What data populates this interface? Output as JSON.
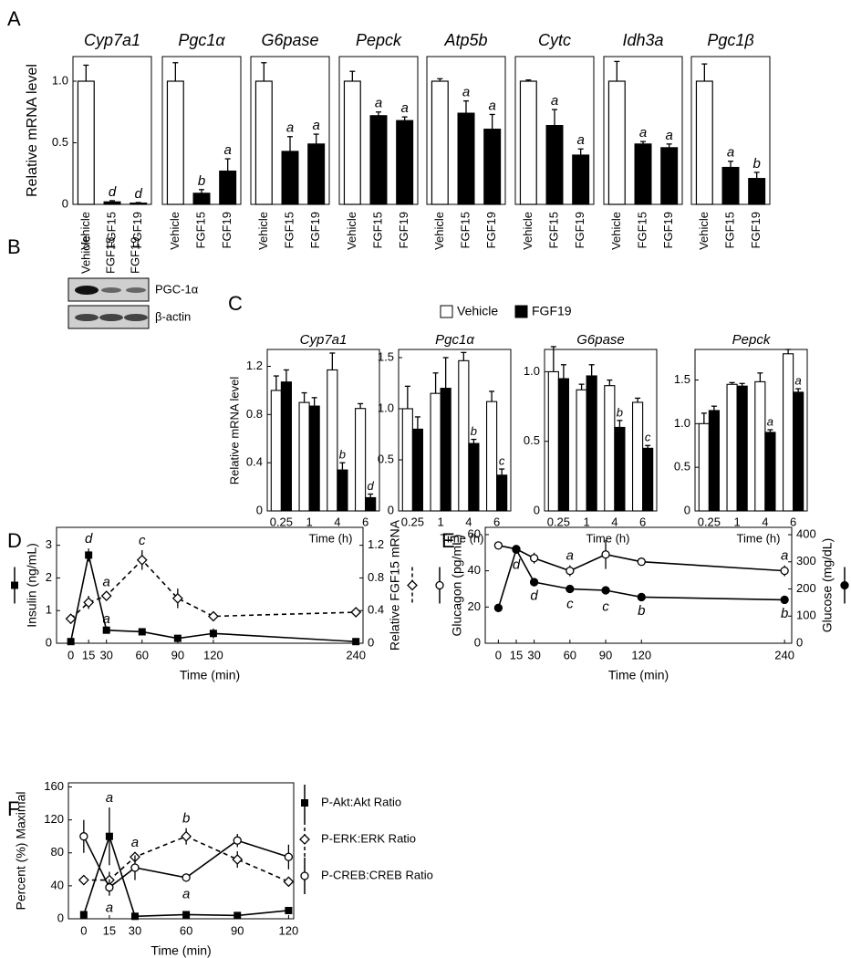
{
  "panel_labels": [
    "A",
    "B",
    "C",
    "D",
    "E",
    "F"
  ],
  "blot": {
    "lanes": [
      "Vehicle",
      "FGF15",
      "FGF19"
    ],
    "bands": [
      "PGC-1α",
      "β-actin"
    ]
  },
  "chart_data": [
    {
      "type": "bar_panels",
      "ylabel": "Relative mRNA level",
      "categories": [
        "Vehicle",
        "FGF15",
        "FGF19"
      ],
      "colors": [
        "#ffffff",
        "#000000",
        "#000000"
      ],
      "ylim": [
        0,
        1.2
      ],
      "yticks": [
        0,
        0.5,
        {
          "value": 1,
          "label": "1.0"
        }
      ],
      "panels": [
        {
          "title": "Cyp7a1",
          "values": [
            1.0,
            0.02,
            0.01
          ],
          "errors": [
            0.13,
            0.01,
            0.005
          ],
          "annotations": [
            null,
            "d",
            "d"
          ]
        },
        {
          "title": "Pgc1α",
          "values": [
            1.0,
            0.09,
            0.27
          ],
          "errors": [
            0.15,
            0.03,
            0.1
          ],
          "annotations": [
            null,
            "b",
            "a"
          ]
        },
        {
          "title": "G6pase",
          "values": [
            1.0,
            0.43,
            0.49
          ],
          "errors": [
            0.15,
            0.12,
            0.08
          ],
          "annotations": [
            null,
            "a",
            "a"
          ]
        },
        {
          "title": "Pepck",
          "values": [
            1.0,
            0.72,
            0.68
          ],
          "errors": [
            0.08,
            0.03,
            0.03
          ],
          "annotations": [
            null,
            "a",
            "a"
          ]
        },
        {
          "title": "Atp5b",
          "values": [
            1.0,
            0.74,
            0.61
          ],
          "errors": [
            0.02,
            0.1,
            0.12
          ],
          "annotations": [
            null,
            "a",
            "a"
          ]
        },
        {
          "title": "Cytc",
          "values": [
            1.0,
            0.64,
            0.4
          ],
          "errors": [
            0.01,
            0.13,
            0.05
          ],
          "annotations": [
            null,
            "a",
            "a"
          ]
        },
        {
          "title": "Idh3a",
          "values": [
            1.0,
            0.49,
            0.46
          ],
          "errors": [
            0.16,
            0.02,
            0.03
          ],
          "annotations": [
            null,
            "a",
            "a"
          ]
        },
        {
          "title": "Pgc1β",
          "values": [
            1.0,
            0.3,
            0.21
          ],
          "errors": [
            0.14,
            0.05,
            0.05
          ],
          "annotations": [
            null,
            "a",
            "b"
          ]
        }
      ]
    },
    {
      "type": "grouped_bar_panels",
      "ylabel": "Relative mRNA level",
      "xlabel": "Time (h)",
      "categories": [
        "0.25",
        "1",
        "4",
        "6"
      ],
      "series": [
        {
          "name": "Vehicle",
          "color": "#ffffff"
        },
        {
          "name": "FGF19",
          "color": "#000000"
        }
      ],
      "panels": [
        {
          "title": "Cyp7a1",
          "ylim": [
            0,
            1.34
          ],
          "yticks": [
            0,
            0.4,
            0.8,
            1.2
          ],
          "values": [
            [
              1.0,
              0.9,
              1.17,
              0.85
            ],
            [
              1.07,
              0.87,
              0.34,
              0.11
            ]
          ],
          "errors": [
            [
              0.12,
              0.08,
              0.14,
              0.04
            ],
            [
              0.1,
              0.07,
              0.06,
              0.03
            ]
          ],
          "annotations": [
            [
              null,
              null,
              null,
              null
            ],
            [
              null,
              null,
              "b",
              "d"
            ]
          ]
        },
        {
          "title": "Pgc1α",
          "ylim": [
            0,
            1.58
          ],
          "yticks": [
            0,
            0.5,
            {
              "value": 1,
              "label": "1.0"
            },
            1.5
          ],
          "values": [
            [
              1.0,
              1.15,
              1.47,
              1.07
            ],
            [
              0.8,
              1.2,
              0.66,
              0.35
            ]
          ],
          "errors": [
            [
              0.22,
              0.2,
              0.08,
              0.1
            ],
            [
              0.12,
              0.3,
              0.04,
              0.06
            ]
          ],
          "annotations": [
            [
              null,
              null,
              null,
              null
            ],
            [
              null,
              null,
              "b",
              "c"
            ]
          ]
        },
        {
          "title": "G6pase",
          "ylim": [
            0,
            1.16
          ],
          "yticks": [
            0,
            0.5,
            {
              "value": 1,
              "label": "1.0"
            }
          ],
          "values": [
            [
              1.0,
              0.87,
              0.9,
              0.78
            ],
            [
              0.95,
              0.97,
              0.6,
              0.45
            ]
          ],
          "errors": [
            [
              0.18,
              0.04,
              0.04,
              0.03
            ],
            [
              0.1,
              0.08,
              0.05,
              0.02
            ]
          ],
          "annotations": [
            [
              null,
              null,
              null,
              null
            ],
            [
              null,
              null,
              "b",
              "c"
            ]
          ]
        },
        {
          "title": "Pepck",
          "ylim": [
            0,
            1.85
          ],
          "yticks": [
            0,
            0.5,
            {
              "value": 1,
              "label": "1.0"
            },
            1.5
          ],
          "values": [
            [
              1.0,
              1.45,
              1.48,
              1.8
            ],
            [
              1.15,
              1.43,
              0.9,
              1.36
            ]
          ],
          "errors": [
            [
              0.12,
              0.02,
              0.1,
              0.05
            ],
            [
              0.05,
              0.03,
              0.03,
              0.04
            ]
          ],
          "annotations": [
            [
              null,
              null,
              null,
              null
            ],
            [
              null,
              null,
              "a",
              "a"
            ]
          ]
        }
      ]
    },
    {
      "type": "line",
      "xlabel": "Time (min)",
      "ylabel": "Insulin (ng/mL)",
      "y2label": "Relative FGF15 mRNA",
      "x": [
        0,
        15,
        30,
        60,
        90,
        120,
        240
      ],
      "xlim": [
        -12,
        246
      ],
      "xticks": [
        0,
        15,
        30,
        60,
        90,
        120,
        240
      ],
      "ylim": [
        0,
        3.55
      ],
      "yticks": [
        0,
        1,
        2,
        3
      ],
      "y2lim": [
        0,
        1.42
      ],
      "y2ticks": [
        0,
        0.4,
        0.8,
        1.2
      ],
      "series": [
        {
          "axis": "y",
          "marker": "square",
          "dashed": false,
          "color": "#000000",
          "annotation_position": "above",
          "values": [
            0.05,
            2.7,
            0.4,
            0.35,
            0.15,
            0.3,
            0.05
          ],
          "errors": [
            0,
            0.2,
            0.05,
            0.1,
            0.05,
            0.15,
            0
          ],
          "annotations": [
            null,
            "d",
            "a",
            null,
            null,
            null,
            null
          ]
        },
        {
          "axis": "y2",
          "marker": "diamond",
          "dashed": true,
          "color": "#000000",
          "annotation_position": "above",
          "values": [
            0.3,
            0.5,
            0.58,
            1.02,
            0.55,
            0.33,
            0.38
          ],
          "errors": [
            0.03,
            0.08,
            0.05,
            0.12,
            0.12,
            0.02,
            0.05
          ],
          "annotations": [
            null,
            null,
            "a",
            "c",
            null,
            null,
            null
          ]
        }
      ]
    },
    {
      "type": "line",
      "xlabel": "Time (min)",
      "ylabel": "Glucagon (pg/mL)",
      "y2label": "Glucose (mg/dL)",
      "x": [
        0,
        15,
        30,
        60,
        90,
        120,
        240
      ],
      "xlim": [
        -11,
        246
      ],
      "xticks": [
        0,
        15,
        30,
        60,
        90,
        120,
        240
      ],
      "ylim": [
        0,
        64
      ],
      "yticks": [
        0,
        20,
        40,
        60
      ],
      "y2lim": [
        0,
        427
      ],
      "y2ticks": [
        0,
        100,
        200,
        300,
        400
      ],
      "series": [
        {
          "axis": "y",
          "marker": "open-circle",
          "dashed": false,
          "color": "#000000",
          "annotation_position": "above",
          "values": [
            54,
            52,
            47,
            40,
            49,
            45,
            40
          ],
          "errors": [
            2,
            2,
            3,
            3,
            8,
            2,
            3
          ],
          "annotations": [
            null,
            null,
            null,
            "a",
            null,
            null,
            "a"
          ]
        },
        {
          "axis": "y2",
          "marker": "filled-circle",
          "dashed": false,
          "color": "#000000",
          "annotation_position": "below",
          "values": [
            130,
            345,
            225,
            200,
            195,
            170,
            160
          ],
          "errors": [
            5,
            10,
            5,
            10,
            15,
            5,
            5
          ],
          "annotations": [
            null,
            "d",
            "d",
            "c",
            "c",
            "b",
            "b"
          ]
        }
      ]
    },
    {
      "type": "line",
      "xlabel": "Time (min)",
      "ylabel": "Percent (%) Maximal",
      "x": [
        0,
        15,
        30,
        60,
        90,
        120
      ],
      "xlim": [
        -9,
        123
      ],
      "xticks": [
        0,
        15,
        30,
        60,
        90,
        120
      ],
      "ylim": [
        0,
        165
      ],
      "yticks": [
        0,
        40,
        80,
        120,
        160
      ],
      "series": [
        {
          "name": "P-Akt:Akt Ratio",
          "axis": "y",
          "marker": "square",
          "dashed": false,
          "color": "#000000",
          "annotation_position": "above",
          "values": [
            5,
            100,
            3,
            5,
            4,
            10
          ],
          "errors": [
            0,
            35,
            0,
            2,
            2,
            2
          ],
          "annotations": [
            null,
            "a",
            null,
            null,
            null,
            null
          ]
        },
        {
          "name": "P-ERK:ERK Ratio",
          "axis": "y",
          "marker": "diamond",
          "dashed": true,
          "color": "#000000",
          "annotation_position": "above",
          "values": [
            47,
            47,
            75,
            100,
            72,
            45
          ],
          "errors": [
            6,
            10,
            6,
            10,
            10,
            3
          ],
          "annotations": [
            null,
            null,
            "a",
            "b",
            null,
            null
          ]
        },
        {
          "name": "P-CREB:CREB Ratio",
          "axis": "y",
          "marker": "open-circle",
          "dashed": false,
          "color": "#000000",
          "annotation_position": "below",
          "values": [
            100,
            38,
            62,
            50,
            95,
            75
          ],
          "errors": [
            20,
            10,
            15,
            5,
            8,
            15
          ],
          "annotations": [
            null,
            "a",
            null,
            "a",
            null,
            null
          ]
        }
      ]
    }
  ]
}
